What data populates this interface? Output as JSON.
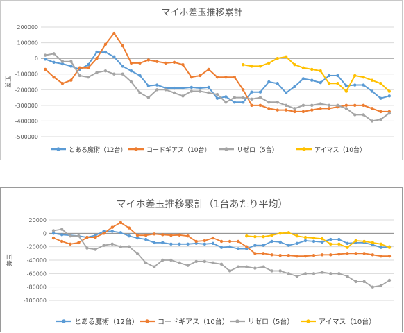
{
  "chart_data": [
    {
      "type": "line",
      "title": "マイホ差玉推移累計",
      "ylabel": "差玉",
      "xlabel": "",
      "ylim": [
        -500000,
        200000
      ],
      "yticks": [
        "200000",
        "100000",
        "0",
        "-100000",
        "-200000",
        "-300000",
        "-400000",
        "-500000"
      ],
      "xticks_note": "dates (unreadable)",
      "grid": true,
      "legend_position": "bottom",
      "series": [
        {
          "name": "とある魔術（12台）",
          "color": "#5b9bd5",
          "values": [
            -5000,
            -25000,
            -35000,
            -50000,
            -70000,
            -40000,
            40000,
            40000,
            10000,
            -50000,
            -80000,
            -110000,
            -175000,
            -170000,
            -190000,
            -190000,
            -190000,
            -185000,
            -190000,
            -185000,
            -255000,
            -245000,
            -280000,
            -280000,
            -215000,
            -215000,
            -150000,
            -160000,
            -220000,
            -180000,
            -130000,
            -140000,
            -155000,
            -110000,
            -110000,
            -175000,
            -170000,
            -170000,
            -210000,
            -255000,
            -240000
          ]
        },
        {
          "name": "コードギアス（10台）",
          "color": "#ed7d31",
          "values": [
            -70000,
            -120000,
            -160000,
            -140000,
            -60000,
            -60000,
            0,
            90000,
            160000,
            80000,
            -30000,
            -30000,
            -10000,
            -20000,
            -30000,
            -25000,
            -40000,
            -120000,
            -110000,
            -70000,
            -120000,
            -120000,
            -120000,
            -200000,
            -300000,
            -300000,
            -320000,
            -330000,
            -330000,
            -340000,
            -340000,
            -330000,
            -320000,
            -320000,
            -310000,
            -300000,
            -300000,
            -300000,
            -320000,
            -340000,
            -340000
          ]
        },
        {
          "name": "リゼロ（5台）",
          "color": "#a5a5a5",
          "values": [
            20000,
            30000,
            -20000,
            -20000,
            -110000,
            -120000,
            -90000,
            -80000,
            -100000,
            -100000,
            -150000,
            -220000,
            -250000,
            -200000,
            -200000,
            -220000,
            -240000,
            -210000,
            -210000,
            -220000,
            -230000,
            -280000,
            -250000,
            -250000,
            -260000,
            -250000,
            -280000,
            -280000,
            -300000,
            -320000,
            -300000,
            -300000,
            -290000,
            -300000,
            -300000,
            -320000,
            -360000,
            -360000,
            -400000,
            -390000,
            -350000
          ]
        },
        {
          "name": "アイマス（10台）",
          "color": "#ffc000",
          "values": [
            null,
            null,
            null,
            null,
            null,
            null,
            null,
            null,
            null,
            null,
            null,
            null,
            null,
            null,
            null,
            null,
            null,
            null,
            null,
            null,
            null,
            null,
            null,
            -40000,
            -50000,
            -50000,
            -30000,
            0,
            10000,
            -40000,
            -60000,
            -70000,
            -80000,
            -160000,
            -160000,
            -210000,
            -110000,
            -120000,
            -140000,
            -160000,
            -210000
          ]
        }
      ]
    },
    {
      "type": "line",
      "title": "マイホ差玉推移累計（1台あたり平均）",
      "ylabel": "差玉",
      "xlabel": "",
      "ylim": [
        -100000,
        20000
      ],
      "yticks": [
        "20000",
        "0",
        "-20000",
        "-40000",
        "-60000",
        "-80000",
        "-100000"
      ],
      "xticks_note": "dates (unreadable)",
      "grid": true,
      "legend_position": "bottom",
      "series": [
        {
          "name": "とある魔術（12台）",
          "color": "#5b9bd5",
          "values": [
            0,
            -2000,
            -3000,
            -4000,
            -6000,
            -3000,
            3000,
            3000,
            1000,
            -4000,
            -7000,
            -9000,
            -14000,
            -14000,
            -16000,
            -16000,
            -16000,
            -15000,
            -16000,
            -15000,
            -21000,
            -20000,
            -23000,
            -23000,
            -18000,
            -18000,
            -12000,
            -13000,
            -18000,
            -15000,
            -11000,
            -12000,
            -13000,
            -9000,
            -9000,
            -15000,
            -14000,
            -14000,
            -17000,
            -21000,
            -20000
          ]
        },
        {
          "name": "コードギアス（10台）",
          "color": "#ed7d31",
          "values": [
            -7000,
            -12000,
            -16000,
            -14000,
            -6000,
            -6000,
            0,
            9000,
            16000,
            8000,
            -3000,
            -3000,
            -1000,
            -2000,
            -3000,
            -2500,
            -4000,
            -12000,
            -11000,
            -7000,
            -12000,
            -12000,
            -12000,
            -20000,
            -30000,
            -30000,
            -32000,
            -33000,
            -33000,
            -34000,
            -34000,
            -33000,
            -32000,
            -32000,
            -31000,
            -30000,
            -30000,
            -30000,
            -32000,
            -34000,
            -34000
          ]
        },
        {
          "name": "リゼロ（5台）",
          "color": "#a5a5a5",
          "values": [
            4000,
            6000,
            -4000,
            -4000,
            -22000,
            -24000,
            -18000,
            -16000,
            -20000,
            -20000,
            -30000,
            -44000,
            -50000,
            -40000,
            -40000,
            -44000,
            -48000,
            -42000,
            -42000,
            -44000,
            -46000,
            -56000,
            -50000,
            -50000,
            -52000,
            -50000,
            -56000,
            -56000,
            -60000,
            -64000,
            -60000,
            -60000,
            -58000,
            -60000,
            -60000,
            -64000,
            -72000,
            -72000,
            -80000,
            -78000,
            -70000
          ]
        },
        {
          "name": "アイマス（10台）",
          "color": "#ffc000",
          "values": [
            null,
            null,
            null,
            null,
            null,
            null,
            null,
            null,
            null,
            null,
            null,
            null,
            null,
            null,
            null,
            null,
            null,
            null,
            null,
            null,
            null,
            null,
            null,
            -4000,
            -5000,
            -5000,
            -3000,
            0,
            1000,
            -4000,
            -6000,
            -7000,
            -8000,
            -16000,
            -16000,
            -21000,
            -11000,
            -12000,
            -14000,
            -16000,
            -21000
          ]
        }
      ]
    }
  ]
}
